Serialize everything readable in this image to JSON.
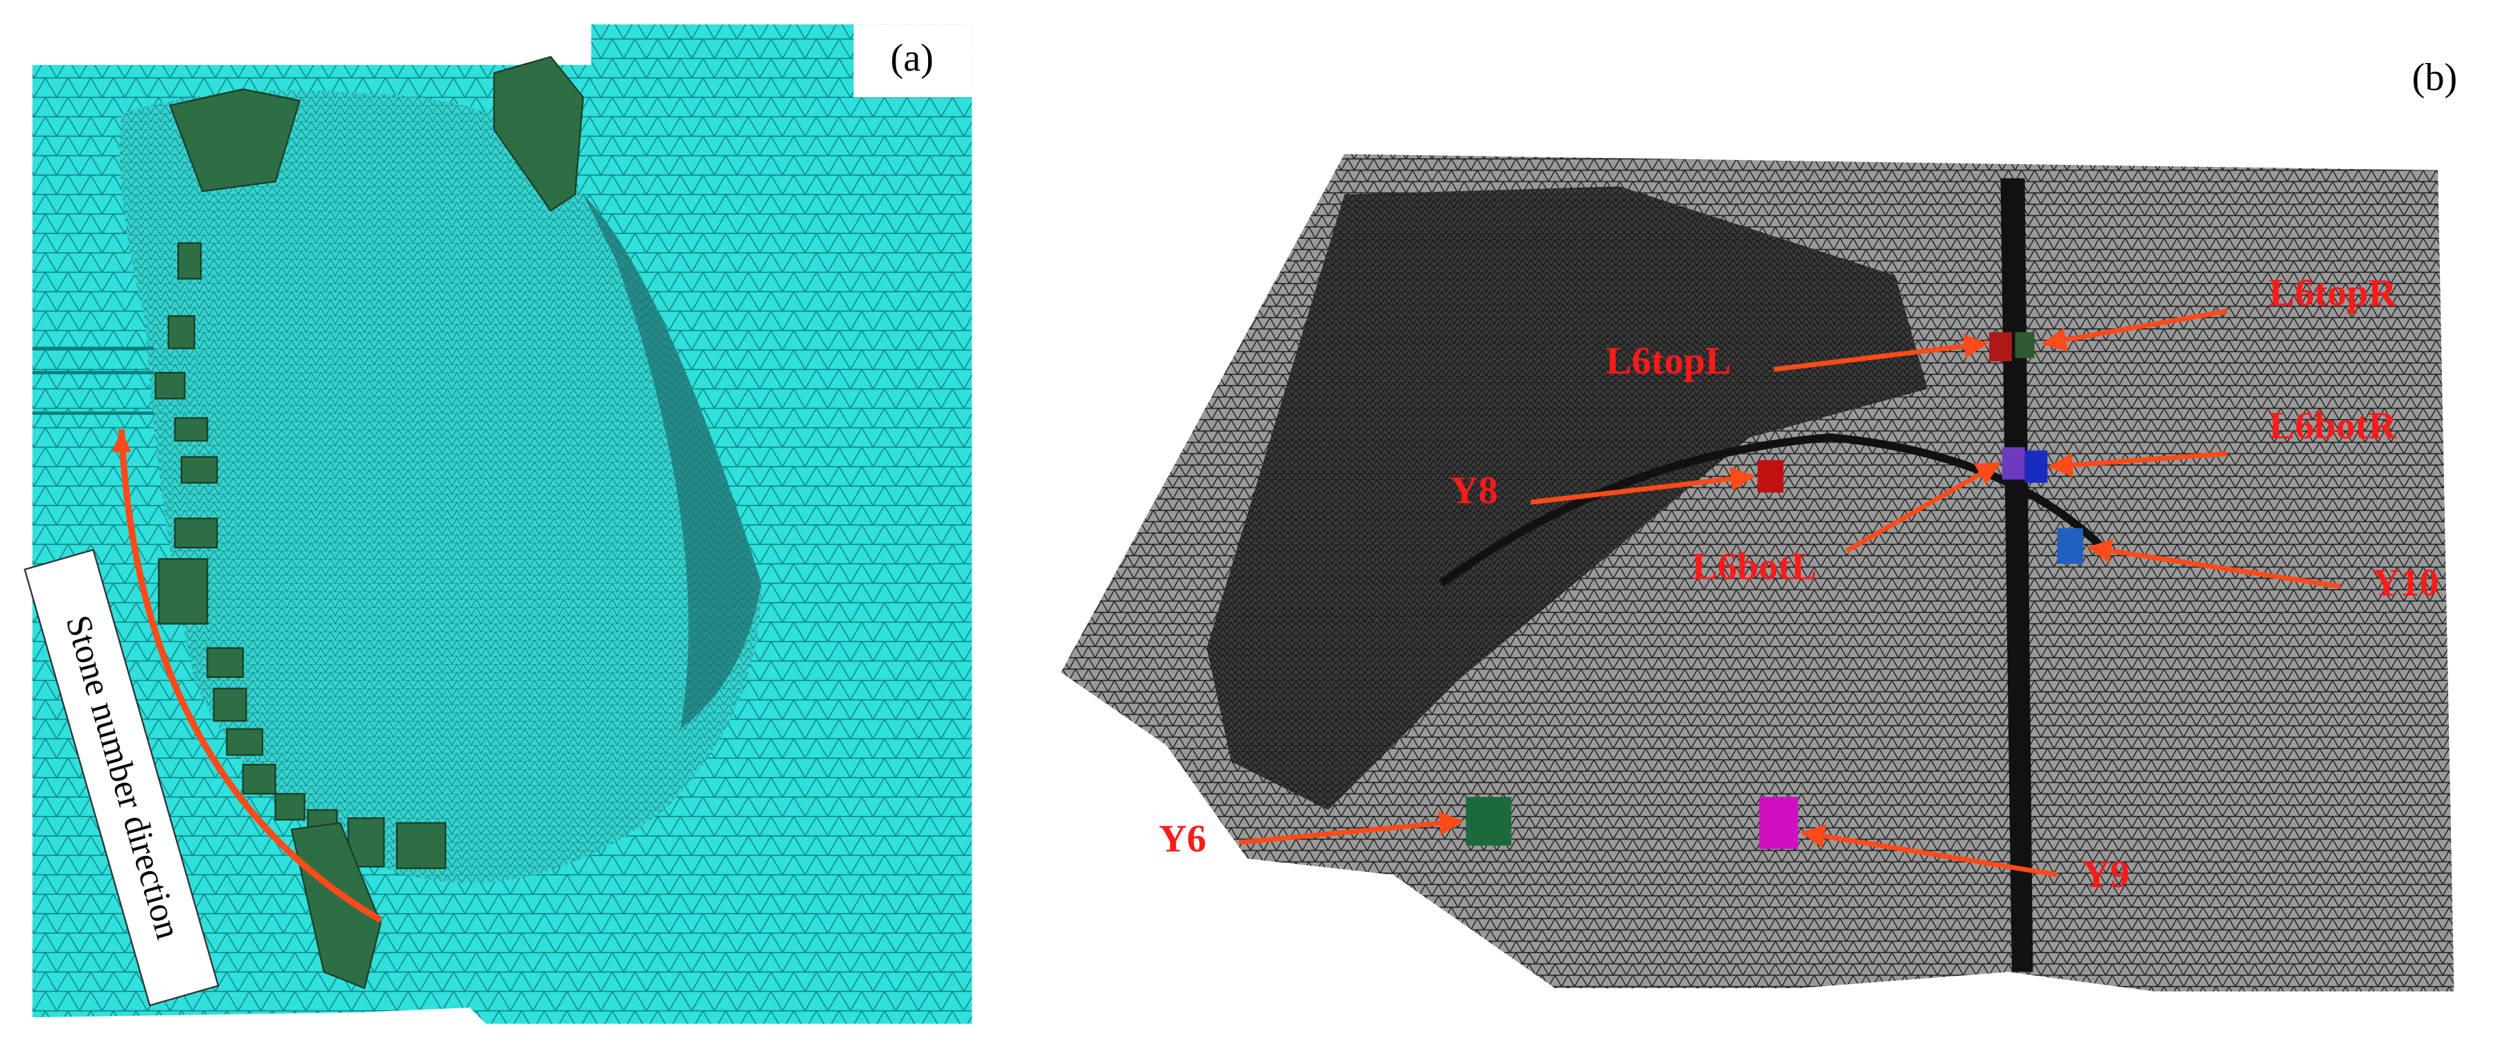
{
  "panel_a": {
    "label": "(a)",
    "annotation": "Stone number direction"
  },
  "panel_b": {
    "label": "(b)",
    "markers": [
      {
        "label": "L6topL"
      },
      {
        "label": "L6topR"
      },
      {
        "label": "L6botR"
      },
      {
        "label": "L6botL"
      },
      {
        "label": "Y8"
      },
      {
        "label": "Y10"
      },
      {
        "label": "Y6"
      },
      {
        "label": "Y9"
      }
    ]
  }
}
